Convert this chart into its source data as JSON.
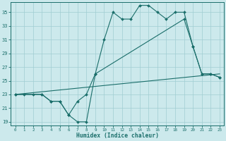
{
  "bg_color": "#cce9ec",
  "grid_color": "#a0cdd2",
  "line_color": "#1a6e6a",
  "xlabel": "Humidex (Indice chaleur)",
  "xlim": [
    -0.5,
    23.5
  ],
  "ylim": [
    18.5,
    36.5
  ],
  "xticks": [
    0,
    1,
    2,
    3,
    4,
    5,
    6,
    7,
    8,
    9,
    10,
    11,
    12,
    13,
    14,
    15,
    16,
    17,
    18,
    19,
    20,
    21,
    22,
    23
  ],
  "yticks": [
    19,
    21,
    23,
    25,
    27,
    29,
    31,
    33,
    35
  ],
  "curve1_x": [
    0,
    1,
    2,
    3,
    4,
    5,
    6,
    7,
    8,
    9,
    10,
    11,
    12,
    13,
    14,
    15,
    16,
    17,
    18,
    19,
    20,
    21,
    22,
    23
  ],
  "curve1_y": [
    23,
    23,
    23,
    23,
    22,
    22,
    20,
    19,
    19,
    26,
    31,
    35,
    34,
    34,
    36,
    36,
    35,
    34,
    35,
    35,
    30,
    26,
    26,
    25.5
  ],
  "curve2_x": [
    0,
    3,
    4,
    5,
    6,
    7,
    8,
    9,
    19,
    20,
    21,
    22,
    23
  ],
  "curve2_y": [
    23,
    23,
    22,
    22,
    20,
    22,
    23,
    26,
    34,
    30,
    26,
    26,
    25.5
  ],
  "curve3_x": [
    0,
    23
  ],
  "curve3_y": [
    23,
    26
  ]
}
